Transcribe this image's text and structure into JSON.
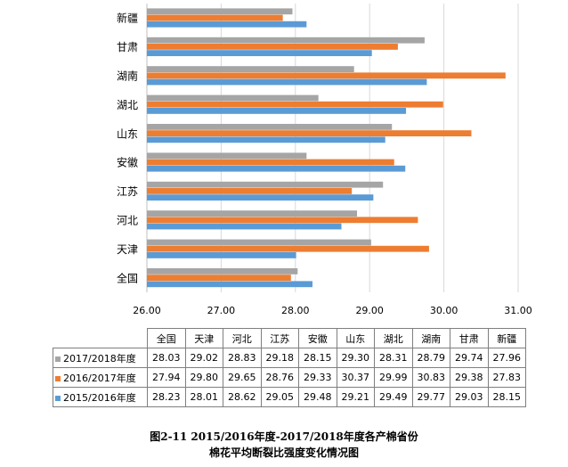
{
  "chart_data": {
    "type": "bar",
    "orientation": "horizontal",
    "categories": [
      "全国",
      "天津",
      "河北",
      "江苏",
      "安徽",
      "山东",
      "湖北",
      "湖南",
      "甘肃",
      "新疆"
    ],
    "series": [
      {
        "name": "2017/2018年度",
        "color": "#a5a5a5",
        "values": [
          28.03,
          29.02,
          28.83,
          29.18,
          28.15,
          29.3,
          28.31,
          28.79,
          29.74,
          27.96
        ]
      },
      {
        "name": "2016/2017年度",
        "color": "#ed7d31",
        "values": [
          27.94,
          29.8,
          29.65,
          28.76,
          29.33,
          30.37,
          29.99,
          30.83,
          29.38,
          27.83
        ]
      },
      {
        "name": "2015/2016年度",
        "color": "#5b9bd5",
        "values": [
          28.23,
          28.01,
          28.62,
          29.05,
          29.48,
          29.21,
          29.49,
          29.77,
          29.03,
          28.15
        ]
      }
    ],
    "xlim": [
      26.0,
      31.0
    ],
    "xticks": [
      "26.00",
      "27.00",
      "28.00",
      "29.00",
      "30.00",
      "31.00"
    ],
    "grid": true,
    "legend": "data-table",
    "table_values": [
      [
        "28.03",
        "29.02",
        "28.83",
        "29.18",
        "28.15",
        "29.30",
        "28.31",
        "28.79",
        "29.74",
        "27.96"
      ],
      [
        "27.94",
        "29.80",
        "29.65",
        "28.76",
        "29.33",
        "30.37",
        "29.99",
        "30.83",
        "29.38",
        "27.83"
      ],
      [
        "28.23",
        "28.01",
        "28.62",
        "29.05",
        "29.48",
        "29.21",
        "29.49",
        "29.77",
        "29.03",
        "28.15"
      ]
    ]
  },
  "caption": {
    "line1": "图2-11  2015/2016年度-2017/2018年度各产棉省份",
    "line2": "棉花平均断裂比强度变化情况图"
  }
}
